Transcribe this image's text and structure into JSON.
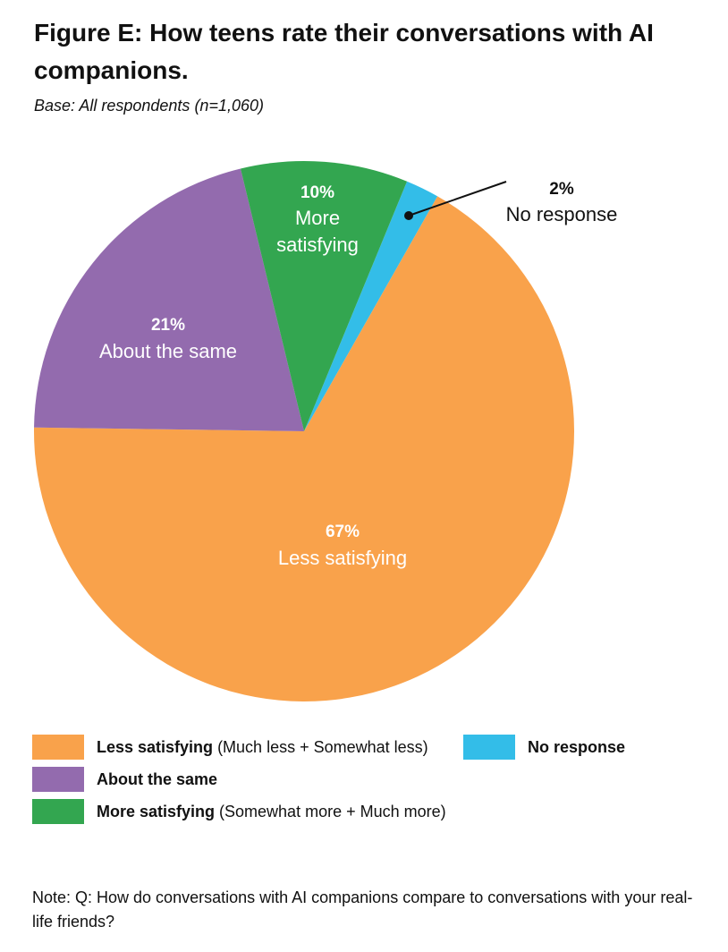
{
  "figure": {
    "title": "Figure E: How teens rate their conversations with AI companions.",
    "base": "Base: All respondents (n=1,060)",
    "note": "Note: Q: How do conversations with AI companions compare to conversations with your real-life friends?"
  },
  "chart_data": {
    "type": "pie",
    "title": "Figure E: How teens rate their conversations with AI companions.",
    "subtitle": "Base: All respondents (n=1,060)",
    "slices": [
      {
        "key": "no_response",
        "label": "No response",
        "value": 2,
        "display": "2%",
        "color": "#33BDE8"
      },
      {
        "key": "less",
        "label": "Less satisfying",
        "value": 67,
        "display": "67%",
        "color": "#F9A24B"
      },
      {
        "key": "same",
        "label": "About the same",
        "value": 21,
        "display": "21%",
        "color": "#936BAE"
      },
      {
        "key": "more",
        "label": "More satisfying",
        "value": 10,
        "display": "10%",
        "color": "#33A650"
      }
    ],
    "more_label_lines": [
      "More",
      "satisfying"
    ],
    "legend": [
      {
        "name": "Less satisfying",
        "detail": "(Much less + Somewhat less)",
        "color": "#F9A24B"
      },
      {
        "name": "About the same",
        "detail": "",
        "color": "#936BAE"
      },
      {
        "name": "More satisfying",
        "detail": "(Somewhat more + Much more)",
        "color": "#33A650"
      },
      {
        "name": "No response",
        "detail": "",
        "color": "#33BDE8"
      }
    ]
  }
}
